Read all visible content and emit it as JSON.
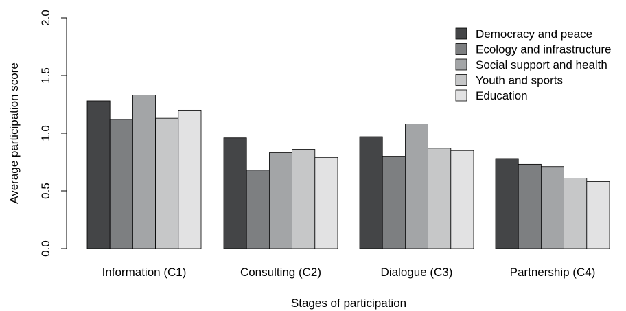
{
  "chart_data": {
    "type": "bar",
    "title": "",
    "xlabel": "Stages of participation",
    "ylabel": "Average participation score",
    "ylim": [
      0,
      2.0
    ],
    "yticks": [
      "0.0",
      "0.5",
      "1.0",
      "1.5",
      "2.0"
    ],
    "grid": false,
    "legend_position": "top-right",
    "categories": [
      "Information (C1)",
      "Consulting (C2)",
      "Dialogue (C3)",
      "Partnership (C4)"
    ],
    "series": [
      {
        "name": "Democracy and peace",
        "color": "#444547",
        "values": [
          1.28,
          0.96,
          0.97,
          0.78
        ]
      },
      {
        "name": "Ecology and infrastructure",
        "color": "#7d7f81",
        "values": [
          1.12,
          0.68,
          0.8,
          0.73
        ]
      },
      {
        "name": "Social support and health",
        "color": "#a3a5a7",
        "values": [
          1.33,
          0.83,
          1.08,
          0.71
        ]
      },
      {
        "name": "Youth and sports",
        "color": "#c6c7c8",
        "values": [
          1.13,
          0.86,
          0.87,
          0.61
        ]
      },
      {
        "name": "Education",
        "color": "#e2e2e3",
        "values": [
          1.2,
          0.79,
          0.85,
          0.58
        ]
      }
    ]
  }
}
